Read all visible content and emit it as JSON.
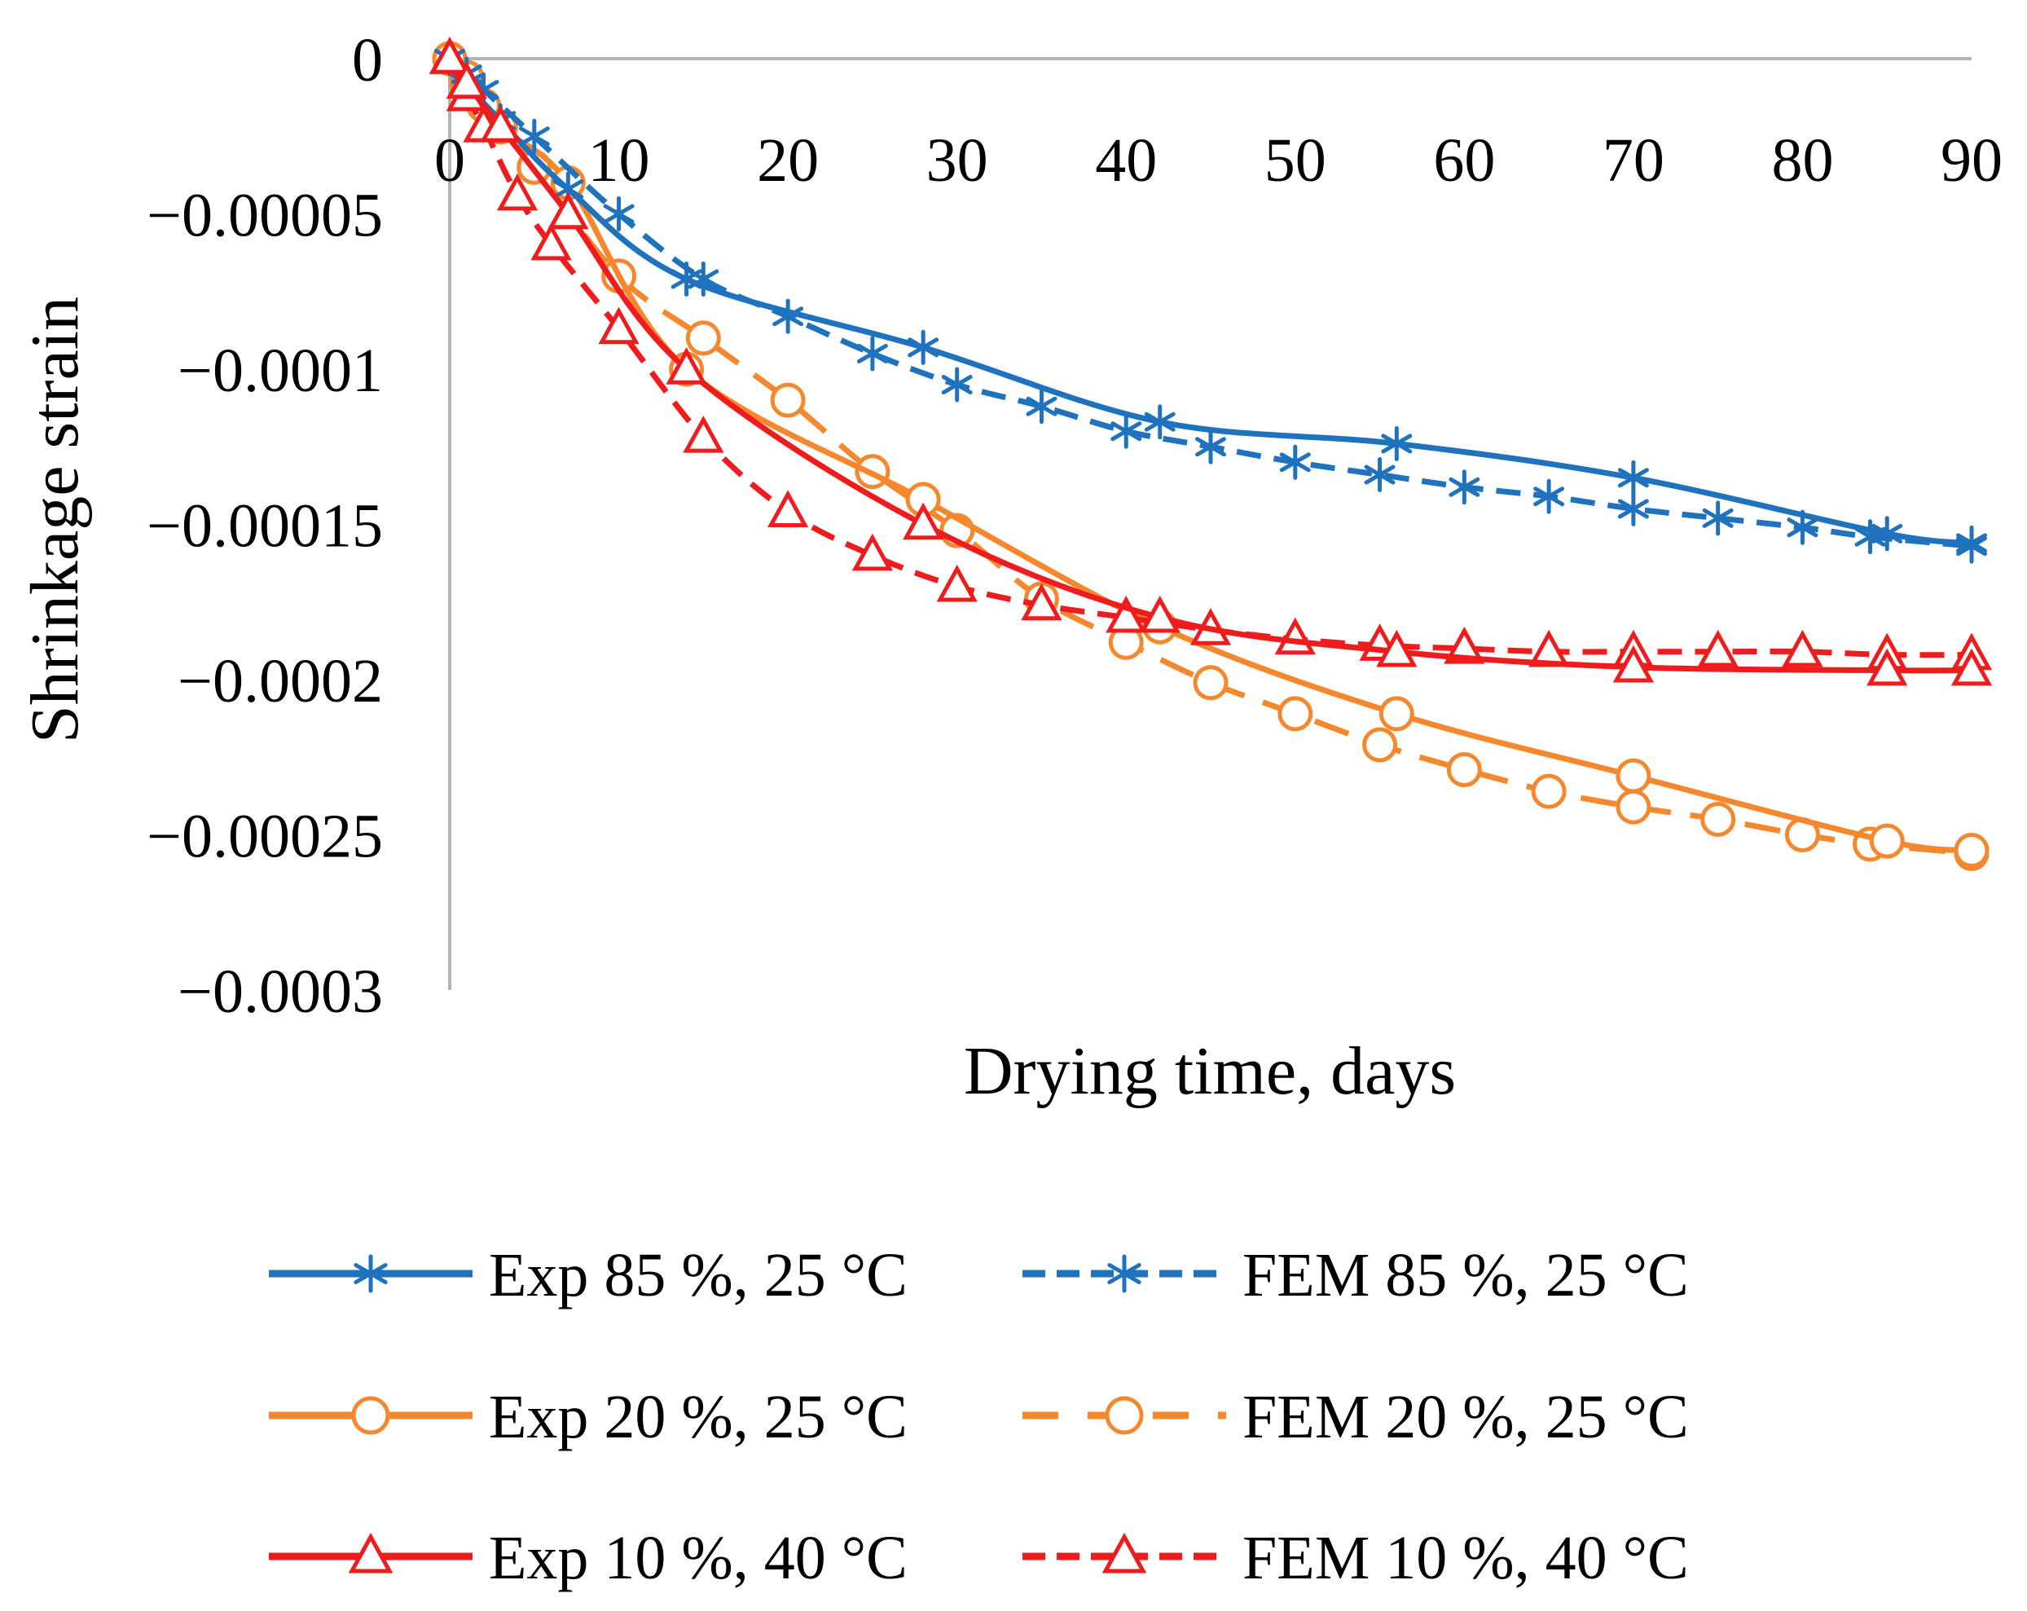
{
  "chart_data": {
    "type": "line",
    "title": "",
    "xlabel": "Drying time, days",
    "ylabel": "Shrinkage strain",
    "xlim": [
      0,
      90
    ],
    "ylim": [
      -0.0003,
      0
    ],
    "x_ticks": [
      0,
      10,
      20,
      30,
      40,
      50,
      60,
      70,
      80,
      90
    ],
    "x_tick_labels": [
      "0",
      "10",
      "20",
      "30",
      "40",
      "50",
      "60",
      "70",
      "80",
      "90"
    ],
    "y_ticks": [
      0,
      -5e-05,
      -0.0001,
      -0.00015,
      -0.0002,
      -0.00025,
      -0.0003
    ],
    "y_tick_labels": [
      "0",
      "−0.00005",
      "−0.0001",
      "−0.00015",
      "−0.0002",
      "−0.00025",
      "−0.0003"
    ],
    "grid": false,
    "legend_position": "bottom",
    "series": [
      {
        "name": "Exp 85 %, 25 °C",
        "color": "#1f72bd",
        "line": "solid",
        "marker": "asterisk",
        "x": [
          0,
          1,
          3,
          7,
          14,
          28,
          42,
          56,
          70,
          85,
          90
        ],
        "y": [
          0,
          -8e-06,
          -2e-05,
          -4.2e-05,
          -7.1e-05,
          -9.3e-05,
          -0.000117,
          -0.000124,
          -0.000135,
          -0.000153,
          -0.000156
        ]
      },
      {
        "name": "FEM 85 %, 25 °C",
        "color": "#1f72bd",
        "line": "dashed",
        "marker": "asterisk",
        "x": [
          0,
          1,
          2,
          5,
          10,
          15,
          20,
          25,
          30,
          35,
          40,
          45,
          50,
          55,
          60,
          65,
          70,
          75,
          80,
          84,
          90
        ],
        "y": [
          0,
          -5e-06,
          -1e-05,
          -2.5e-05,
          -5e-05,
          -7.1e-05,
          -8.3e-05,
          -9.5e-05,
          -0.000105,
          -0.000112,
          -0.00012,
          -0.000125,
          -0.00013,
          -0.000134,
          -0.000138,
          -0.000141,
          -0.000145,
          -0.000148,
          -0.000151,
          -0.000154,
          -0.000157
        ]
      },
      {
        "name": "Exp 20 %, 25 °C",
        "color": "#f5872d",
        "line": "solid",
        "marker": "circle",
        "x": [
          0,
          1,
          3,
          7,
          14,
          28,
          42,
          56,
          70,
          85,
          90
        ],
        "y": [
          0,
          -6e-06,
          -2.2e-05,
          -4e-05,
          -0.0001,
          -0.000142,
          -0.000183,
          -0.000211,
          -0.000231,
          -0.000252,
          -0.000255
        ]
      },
      {
        "name": "FEM 20 %, 25 °C",
        "color": "#f5872d",
        "line": "dashed",
        "marker": "circle",
        "x": [
          0,
          1,
          2,
          5,
          10,
          15,
          20,
          25,
          30,
          35,
          40,
          45,
          50,
          55,
          60,
          65,
          70,
          75,
          80,
          84,
          90
        ],
        "y": [
          0,
          -8e-06,
          -1.5e-05,
          -3.5e-05,
          -7e-05,
          -9e-05,
          -0.00011,
          -0.000133,
          -0.000152,
          -0.000174,
          -0.000188,
          -0.000201,
          -0.000211,
          -0.000221,
          -0.000229,
          -0.000236,
          -0.000241,
          -0.000245,
          -0.00025,
          -0.000253,
          -0.000256
        ]
      },
      {
        "name": "Exp 10 %, 40 °C",
        "color": "#ee1c1c",
        "line": "solid",
        "marker": "triangle",
        "x": [
          0,
          1,
          3,
          7,
          14,
          28,
          42,
          56,
          70,
          85,
          90
        ],
        "y": [
          0,
          -8e-06,
          -2.2e-05,
          -5e-05,
          -0.0001,
          -0.00015,
          -0.00018,
          -0.000191,
          -0.000196,
          -0.000197,
          -0.000197
        ]
      },
      {
        "name": "FEM 10 %, 40 °C",
        "color": "#ee1c1c",
        "line": "dashed",
        "marker": "triangle",
        "x": [
          0,
          1,
          2,
          4,
          6,
          10,
          15,
          20,
          25,
          30,
          35,
          40,
          45,
          50,
          55,
          60,
          65,
          70,
          75,
          80,
          85,
          90
        ],
        "y": [
          0,
          -1.2e-05,
          -2.2e-05,
          -4.4e-05,
          -6e-05,
          -8.7e-05,
          -0.000122,
          -0.000146,
          -0.00016,
          -0.00017,
          -0.000176,
          -0.00018,
          -0.000184,
          -0.000187,
          -0.000189,
          -0.00019,
          -0.000191,
          -0.000191,
          -0.000191,
          -0.000191,
          -0.000192,
          -0.000192
        ]
      }
    ]
  }
}
